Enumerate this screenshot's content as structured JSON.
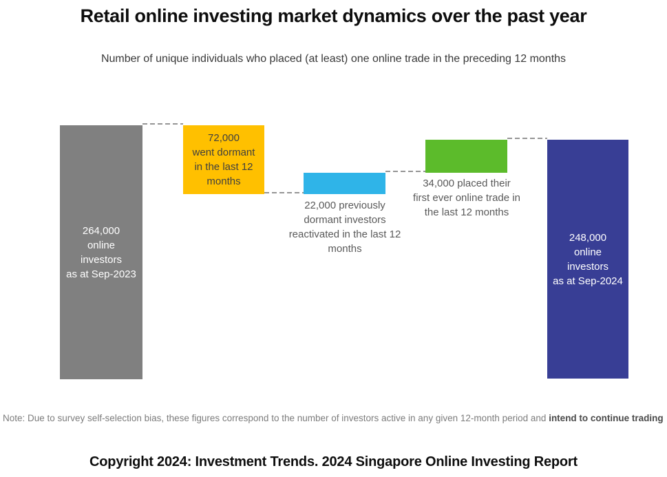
{
  "page": {
    "title": "Retail online investing market dynamics over the past year",
    "subtitle": "Number of unique individuals who placed (at least) one online trade in the preceding 12 months",
    "note_text": "Note: Due to survey self-selection bias, these figures correspond to the number of investors active in any given 12-month period and ",
    "note_emphasis": "intend to continue trading",
    "copyright": "Copyright 2024: Investment Trends. 2024 Singapore Online Investing Report"
  },
  "bars": [
    {
      "id": "investors-sep-2023",
      "value": 264000,
      "color": "#808080",
      "label": "264,000\nonline\ninvestors\nas at Sep-2023"
    },
    {
      "id": "went-dormant",
      "value": -72000,
      "color": "#ffc000",
      "label": "72,000\nwent dormant\nin the last 12\nmonths"
    },
    {
      "id": "reactivated",
      "value": 22000,
      "color": "#2fb4e8",
      "label": "22,000 previously\ndormant investors\nreactivated in the last 12\nmonths"
    },
    {
      "id": "first-ever-trade",
      "value": 34000,
      "color": "#5cbb2b",
      "label": "34,000 placed their\nfirst ever online trade in\nthe last 12 months"
    },
    {
      "id": "investors-sep-2024",
      "value": 248000,
      "color": "#383e95",
      "label": "248,000\nonline\ninvestors\nas at Sep-2024"
    }
  ],
  "chart_data": {
    "type": "bar",
    "subtype": "waterfall",
    "title": "Retail online investing market dynamics over the past year",
    "subtitle": "Number of unique individuals who placed (at least) one online trade in the preceding 12 months",
    "categories": [
      "Online investors as at Sep-2023",
      "Went dormant in the last 12 months",
      "Previously dormant investors reactivated in the last 12 months",
      "Placed their first ever online trade in the last 12 months",
      "Online investors as at Sep-2024"
    ],
    "values": [
      264000,
      -72000,
      22000,
      34000,
      248000
    ],
    "running_totals": [
      264000,
      192000,
      214000,
      248000,
      248000
    ],
    "bar_colors": [
      "#808080",
      "#ffc000",
      "#2fb4e8",
      "#5cbb2b",
      "#383e95"
    ],
    "connector_style": "dashed gray between consecutive bar levels",
    "axes": "none (free-floating labeled waterfall, no gridlines, no axis ticks)",
    "legend": "none"
  }
}
